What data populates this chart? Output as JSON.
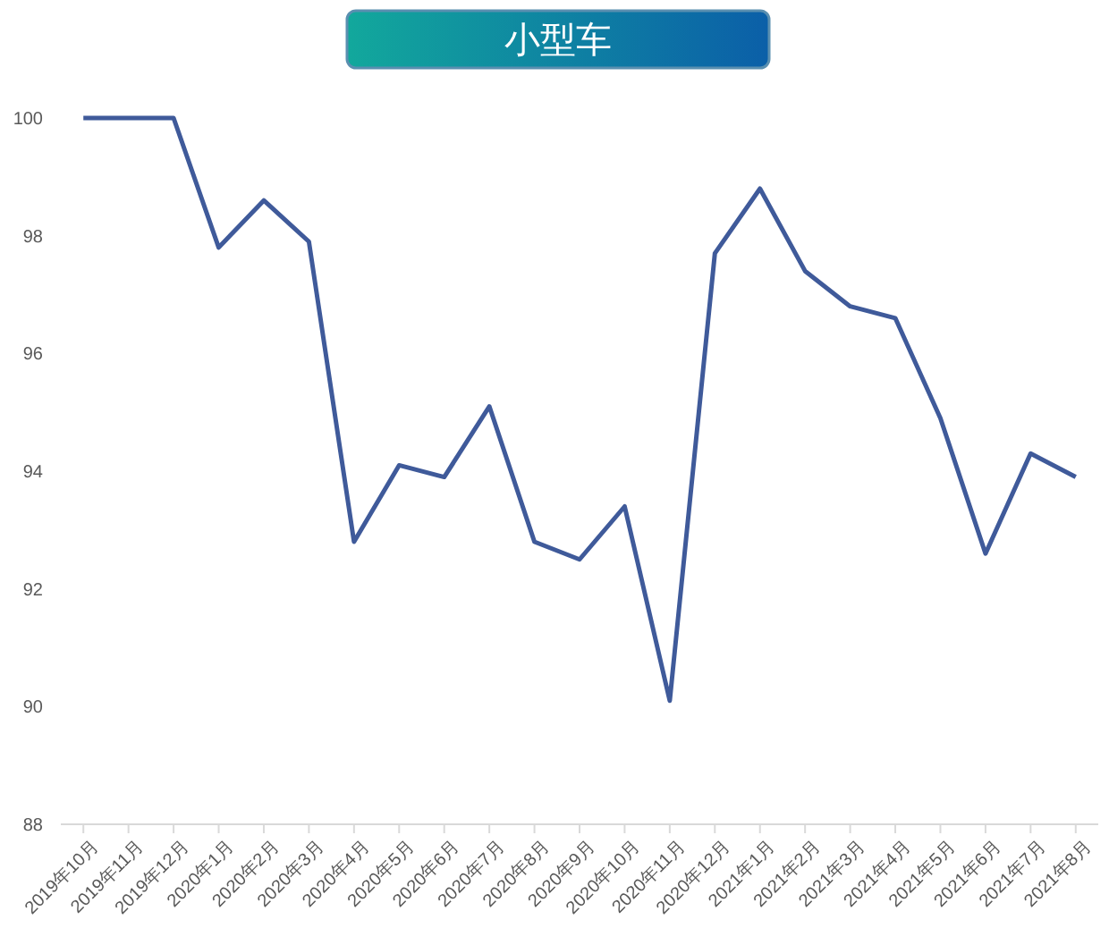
{
  "chart_data": {
    "type": "line",
    "title": "小型车",
    "categories": [
      "2019年10月",
      "2019年11月",
      "2019年12月",
      "2020年1月",
      "2020年2月",
      "2020年3月",
      "2020年4月",
      "2020年5月",
      "2020年6月",
      "2020年7月",
      "2020年8月",
      "2020年9月",
      "2020年10月",
      "2020年11月",
      "2020年12月",
      "2021年1月",
      "2021年2月",
      "2021年3月",
      "2021年4月",
      "2021年5月",
      "2021年6月",
      "2021年7月",
      "2021年8月"
    ],
    "series": [
      {
        "color": "#3f5a9a",
        "values": [
          100,
          100,
          100,
          97.8,
          98.6,
          97.9,
          92.8,
          94.1,
          93.9,
          95.1,
          92.8,
          92.5,
          93.4,
          90.1,
          97.7,
          98.8,
          97.4,
          96.8,
          96.6,
          94.9,
          92.6,
          94.3,
          93.9
        ]
      }
    ],
    "ylim": [
      88,
      100
    ],
    "yticks": [
      88,
      90,
      92,
      94,
      96,
      98,
      100
    ],
    "marker": "none",
    "line_style": "solid"
  }
}
